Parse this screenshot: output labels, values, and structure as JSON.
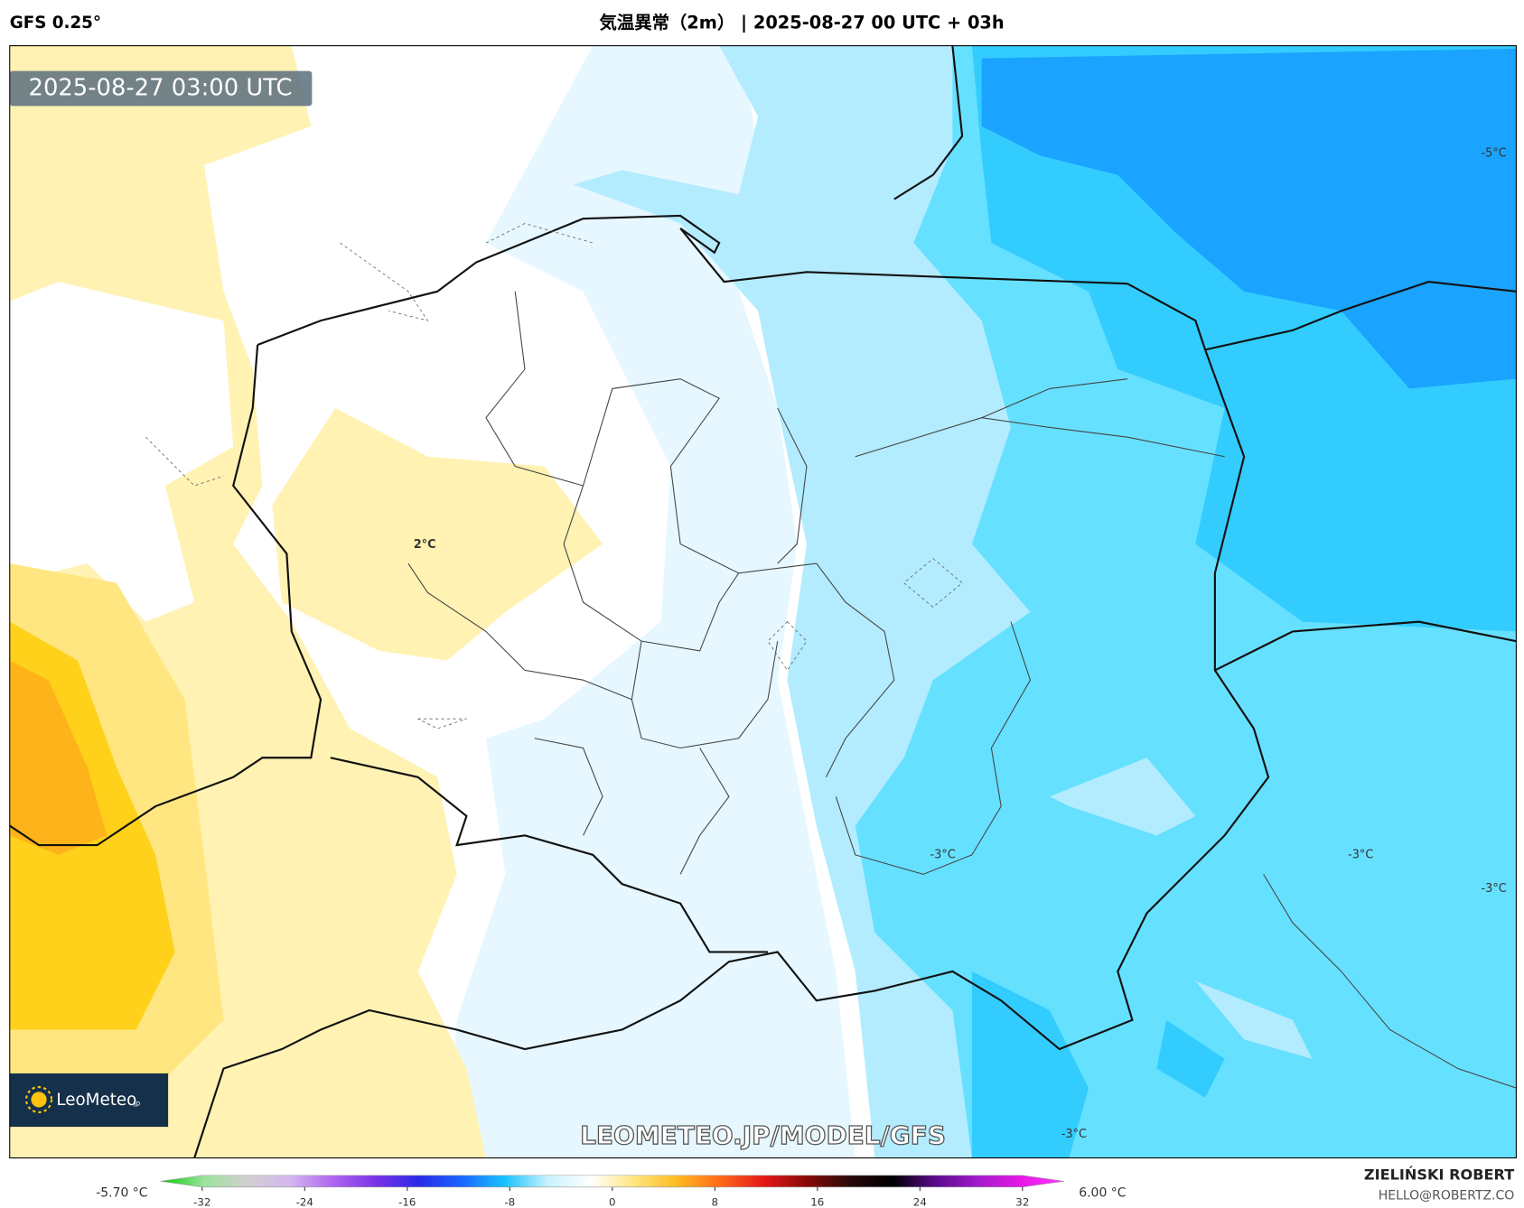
{
  "header": {
    "model": "GFS 0.25°",
    "title": "気温異常（2m） | 2025-08-27 00 UTC + 03h"
  },
  "map": {
    "timestamp": "2025-08-27 03:00 UTC",
    "contour_labels": [
      "2°C",
      "-5°C",
      "-3°C",
      "-3°C",
      "-3°C",
      "-3°C"
    ],
    "logo": {
      "name": "LeoMeteo",
      "suffix": "jp"
    },
    "watermark": "LEOMETEO.JP/MODEL/GFS"
  },
  "colorbar": {
    "min_label": "-5.70 °C",
    "max_label": "6.00 °C",
    "range": [
      -32,
      32
    ],
    "ticks": [
      -32,
      -24,
      -16,
      -8,
      0,
      8,
      16,
      24,
      32
    ],
    "colors": [
      "#00cc00",
      "#9be39b",
      "#d0d0d0",
      "#d6b8f0",
      "#b066ee",
      "#7a33e6",
      "#2a2ae6",
      "#1a66ff",
      "#19c3ff",
      "#c8f3ff",
      "#ffffff",
      "#ffe680",
      "#ffbb22",
      "#ff6a1a",
      "#e61919",
      "#8b0a0a",
      "#2a0a0a",
      "#000000",
      "#5a0a8a",
      "#a31acc",
      "#e619e6",
      "#ff33ff"
    ]
  },
  "credit": {
    "author": "ZIELIŃSKI ROBERT",
    "email": "HELLO@ROBERTZ.CO"
  }
}
